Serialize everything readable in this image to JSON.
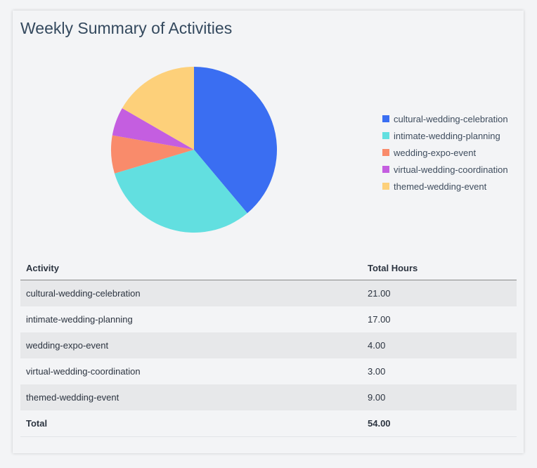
{
  "title": "Weekly Summary of Activities",
  "chart_data": {
    "type": "pie",
    "title": "Weekly Summary of Activities",
    "categories": [
      "cultural-wedding-celebration",
      "intimate-wedding-planning",
      "wedding-expo-event",
      "virtual-wedding-coordination",
      "themed-wedding-event"
    ],
    "values": [
      21,
      17,
      4,
      3,
      9
    ],
    "colors": [
      "#3a6ef2",
      "#62dfe0",
      "#f98b6b",
      "#c45ee0",
      "#fdd07a"
    ],
    "legend": "right"
  },
  "table": {
    "headers": [
      "Activity",
      "Total Hours"
    ],
    "rows": [
      [
        "cultural-wedding-celebration",
        "21.00"
      ],
      [
        "intimate-wedding-planning",
        "17.00"
      ],
      [
        "wedding-expo-event",
        "4.00"
      ],
      [
        "virtual-wedding-coordination",
        "3.00"
      ],
      [
        "themed-wedding-event",
        "9.00"
      ]
    ],
    "total": [
      "Total",
      "54.00"
    ]
  }
}
